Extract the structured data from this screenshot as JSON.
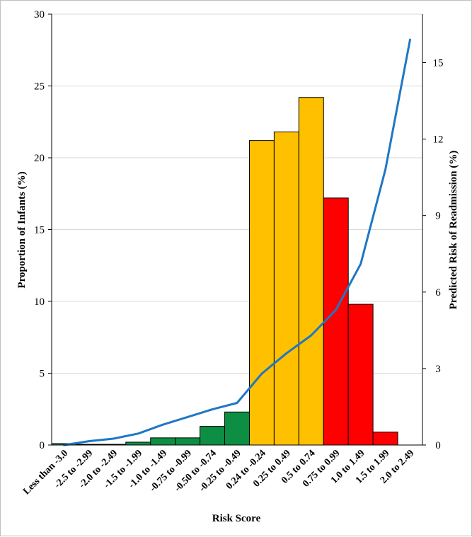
{
  "chart_data": {
    "type": "bar",
    "title": "",
    "xlabel": "Risk Score",
    "ylabel": "Proportion of Infants (%)",
    "y2label": "Predicted Risk of Readmission (%)",
    "categories": [
      "Less than -3.0",
      "-2.5 to -2.99",
      "-2.0 to -2.49",
      "-1.5 to -1.99",
      "-1.0 to -1.49",
      "-0.75 to -0.99",
      "-0.50 to -0.74",
      "-0.25 to -0.49",
      "0.24 to -0.24",
      "0.25 to 0.49",
      "0.5 to 0.74",
      "0.75 to 0.99",
      "1.0 to 1.49",
      "1.5 to 1.99",
      "2.0 to 2.49"
    ],
    "ylim": [
      0,
      30
    ],
    "yticks": [
      0,
      5,
      10,
      15,
      20,
      25,
      30
    ],
    "y2lim": [
      0,
      16.9
    ],
    "y2ticks": [
      0,
      3,
      6,
      9,
      12,
      15
    ],
    "grid": true,
    "series": [
      {
        "type": "bar",
        "values": [
          0.1,
          0.05,
          0.05,
          0.2,
          0.5,
          0.5,
          1.3,
          2.3,
          21.2,
          21.8,
          24.2,
          17.2,
          9.8,
          0.9,
          0.0
        ],
        "colors": [
          "#0d8f43",
          "#0d8f43",
          "#0d8f43",
          "#0d8f43",
          "#0d8f43",
          "#0d8f43",
          "#0d8f43",
          "#0d8f43",
          "#ffc000",
          "#ffc000",
          "#ffc000",
          "#ff0000",
          "#ff0000",
          "#ff0000",
          "#ff0000"
        ]
      },
      {
        "type": "line",
        "axis": "right",
        "color": "#1f77c4",
        "values": [
          0.0,
          0.15,
          0.25,
          0.45,
          0.8,
          1.1,
          1.4,
          1.65,
          2.8,
          3.6,
          4.3,
          5.3,
          7.1,
          10.8,
          15.9
        ]
      }
    ]
  }
}
